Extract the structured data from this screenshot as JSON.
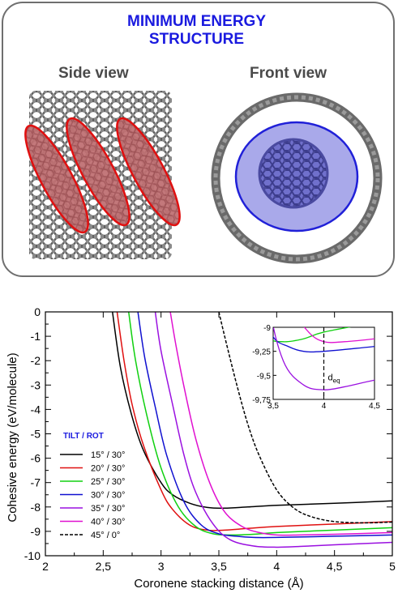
{
  "header": {
    "title_line1": "MINIMUM ENERGY",
    "title_line2": "STRUCTURE",
    "side_view_label": "Side view",
    "front_view_label": "Front view"
  },
  "colors": {
    "title_blue": "#1a1adf",
    "ellipse_red": "#e01010",
    "ellipse_blue": "#2020d8"
  },
  "chart_data": {
    "type": "line",
    "xlabel": "Coronene stacking distance (Å)",
    "ylabel": "Cohesive energy (eV/molecule)",
    "xlim": [
      2,
      5
    ],
    "ylim": [
      -10,
      0
    ],
    "xticks": [
      "2",
      "2,5",
      "3",
      "3,5",
      "4",
      "4,5",
      "5"
    ],
    "yticks": [
      "0",
      "-1",
      "-2",
      "-3",
      "-4",
      "-5",
      "-6",
      "-7",
      "-8",
      "-9",
      "-10"
    ],
    "legend_title": "TILT / ROT",
    "series": [
      {
        "name": "15° / 30°",
        "color": "#000000",
        "dashed": false,
        "x": [
          2.58,
          2.65,
          2.75,
          2.85,
          3.0,
          3.1,
          3.25,
          3.4,
          3.55,
          3.75,
          4.0,
          4.5,
          5.0
        ],
        "y": [
          0.0,
          -2.3,
          -4.3,
          -5.7,
          -7.0,
          -7.5,
          -7.85,
          -8.02,
          -8.05,
          -8.0,
          -7.93,
          -7.85,
          -7.75
        ]
      },
      {
        "name": "20° / 30°",
        "color": "#e01010",
        "dashed": false,
        "x": [
          2.62,
          2.68,
          2.75,
          2.85,
          3.0,
          3.1,
          3.25,
          3.4,
          3.55,
          3.75,
          4.0,
          4.5,
          5.0
        ],
        "y": [
          0.0,
          -2.0,
          -3.8,
          -5.5,
          -7.3,
          -8.1,
          -8.75,
          -8.95,
          -8.95,
          -8.88,
          -8.8,
          -8.7,
          -8.6
        ]
      },
      {
        "name": "25° / 30°",
        "color": "#10d010",
        "dashed": false,
        "x": [
          2.72,
          2.78,
          2.88,
          3.0,
          3.15,
          3.3,
          3.45,
          3.6,
          3.8,
          4.0,
          4.5,
          5.0
        ],
        "y": [
          0.0,
          -2.0,
          -4.3,
          -6.4,
          -8.0,
          -8.8,
          -9.1,
          -9.15,
          -9.12,
          -9.05,
          -8.95,
          -8.85
        ]
      },
      {
        "name": "30° / 30°",
        "color": "#1010d0",
        "dashed": false,
        "x": [
          2.8,
          2.86,
          2.95,
          3.05,
          3.2,
          3.35,
          3.5,
          3.65,
          3.8,
          4.0,
          4.5,
          5.0
        ],
        "y": [
          0.0,
          -1.9,
          -3.9,
          -5.9,
          -7.8,
          -8.75,
          -9.1,
          -9.2,
          -9.25,
          -9.25,
          -9.2,
          -9.15
        ]
      },
      {
        "name": "35° / 30°",
        "color": "#9a10e0",
        "dashed": false,
        "x": [
          2.95,
          3.0,
          3.1,
          3.2,
          3.3,
          3.45,
          3.6,
          3.8,
          4.0,
          4.2,
          4.5,
          5.0
        ],
        "y": [
          0.0,
          -1.6,
          -3.8,
          -5.9,
          -7.4,
          -8.7,
          -9.35,
          -9.6,
          -9.65,
          -9.62,
          -9.55,
          -9.45
        ]
      },
      {
        "name": "40° / 30°",
        "color": "#e010d0",
        "dashed": false,
        "x": [
          3.08,
          3.13,
          3.2,
          3.3,
          3.42,
          3.55,
          3.7,
          3.85,
          4.0,
          4.2,
          4.5,
          5.0
        ],
        "y": [
          0.0,
          -1.4,
          -3.1,
          -5.2,
          -7.0,
          -8.2,
          -8.8,
          -9.05,
          -9.15,
          -9.15,
          -9.12,
          -9.05
        ]
      },
      {
        "name": "45° / 0°",
        "color": "#000000",
        "dashed": true,
        "x": [
          3.5,
          3.55,
          3.65,
          3.75,
          3.85,
          4.0,
          4.15,
          4.3,
          4.5,
          4.75,
          5.0
        ],
        "y": [
          0.0,
          -1.0,
          -2.9,
          -4.6,
          -5.9,
          -7.3,
          -8.05,
          -8.4,
          -8.6,
          -8.65,
          -8.62
        ]
      }
    ],
    "inset": {
      "xlim": [
        3.5,
        4.5
      ],
      "ylim": [
        -9.75,
        -9
      ],
      "xticks": [
        "3,5",
        "4",
        "4,5"
      ],
      "yticks": [
        "-9",
        "-9,25",
        "-9,5",
        "-9,75"
      ],
      "annotation": "d",
      "annotation_sub": "eq",
      "marker_x": 4.0
    }
  }
}
